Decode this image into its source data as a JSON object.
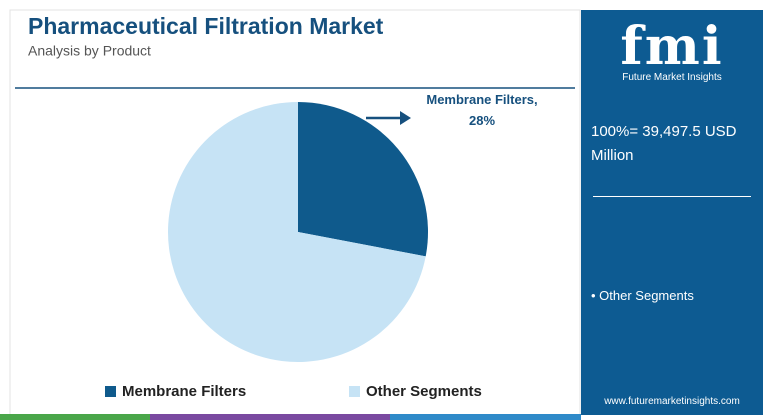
{
  "chart_data": {
    "type": "pie",
    "title": "Pharmaceutical Filtration Market",
    "subtitle": "Analysis by Product",
    "categories": [
      "Membrane Filters",
      "Other Segments"
    ],
    "values": [
      28,
      72
    ],
    "value_labels": [
      "Membrane Filters, 28%",
      null
    ],
    "colors": [
      "#0f5a8c",
      "#c6e3f5"
    ],
    "legend": "bottom"
  },
  "panel": {
    "logo": "fmi",
    "logo_caption": "Future Market Insights",
    "total": "100%= 39,497.5 USD Million",
    "bullet": "• Other Segments",
    "website": "www.futuremarketinsights.com"
  }
}
